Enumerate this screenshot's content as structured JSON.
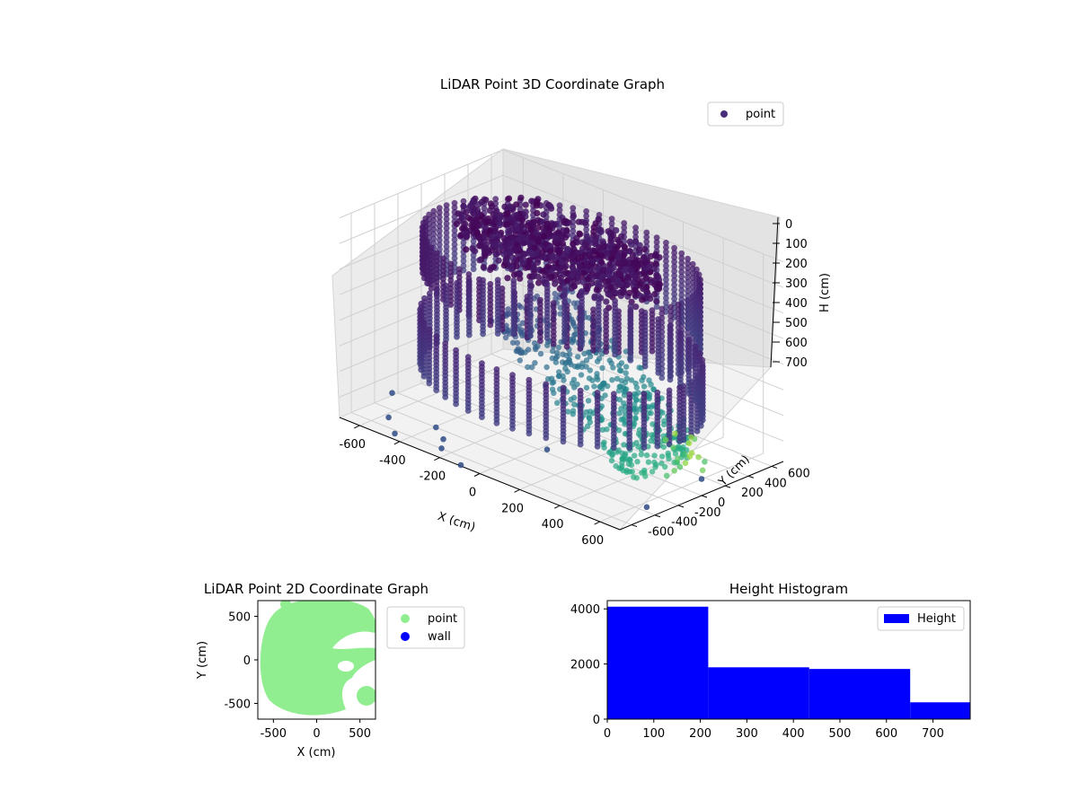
{
  "chart_data": [
    {
      "type": "scatter",
      "projection": "3d",
      "title": "LiDAR Point 3D Coordinate Graph",
      "xlabel": "X (cm)",
      "ylabel": "Y (cm)",
      "zlabel": "H (cm)",
      "xlim": [
        -700,
        700
      ],
      "ylim": [
        -700,
        700
      ],
      "zlim": [
        0,
        780
      ],
      "z_inverted": true,
      "xticks": [
        "-600",
        "-400",
        "-200",
        "0",
        "200",
        "400",
        "600"
      ],
      "yticks": [
        "-600",
        "-400",
        "-200",
        "0",
        "200",
        "400",
        "600"
      ],
      "zticks": [
        "0",
        "100",
        "200",
        "300",
        "400",
        "500",
        "600",
        "700"
      ],
      "grid": true,
      "legend": {
        "placement": "top-right",
        "entries": [
          {
            "label": "point",
            "color": "#472d7b"
          }
        ]
      },
      "colormap": "viridis",
      "series": [
        {
          "name": "point",
          "description_scene": "ring wall of points radius ~600, dense ceiling cluster, sloped inner surface"
        }
      ],
      "outliers": [
        {
          "x": -700,
          "y": -250,
          "h": 770
        },
        {
          "x": -560,
          "y": -520,
          "h": 770
        },
        {
          "x": -430,
          "y": -690,
          "h": 760
        },
        {
          "x": -300,
          "y": -560,
          "h": 720
        },
        {
          "x": -240,
          "y": -600,
          "h": 740
        },
        {
          "x": -220,
          "y": -650,
          "h": 760
        },
        {
          "x": -100,
          "y": -690,
          "h": 780
        },
        {
          "x": 150,
          "y": -380,
          "h": 700
        },
        {
          "x": 630,
          "y": 120,
          "h": 760
        },
        {
          "x": 630,
          "y": -350,
          "h": 780
        }
      ]
    },
    {
      "type": "scatter",
      "title": "LiDAR Point 2D Coordinate Graph",
      "xlabel": "X (cm)",
      "ylabel": "Y (cm)",
      "xlim": [
        -680,
        680
      ],
      "ylim": [
        -680,
        680
      ],
      "xticks": [
        -500,
        0,
        500
      ],
      "yticks": [
        -500,
        0,
        500
      ],
      "legend": {
        "placement": "outside-right",
        "entries": [
          {
            "label": "point",
            "color": "#90ee90"
          },
          {
            "label": "wall",
            "color": "#0000ff"
          }
        ]
      },
      "series": [
        {
          "name": "point",
          "color": "#90ee90",
          "shape": "filled disk radius ~620 centered ~(0,0) with notches on right side"
        }
      ]
    },
    {
      "type": "bar",
      "title": "Height Histogram",
      "xlabel": "",
      "ylabel": "",
      "xlim": [
        0,
        780
      ],
      "ylim": [
        0,
        4300
      ],
      "xticks": [
        0,
        100,
        200,
        300,
        400,
        500,
        600,
        700
      ],
      "yticks": [
        0,
        2000,
        4000
      ],
      "legend": {
        "placement": "top-right",
        "entries": [
          {
            "label": "Height",
            "color": "#0000ff"
          }
        ]
      },
      "bins": [
        {
          "start": 0,
          "end": 217,
          "value": 4080
        },
        {
          "start": 217,
          "end": 434,
          "value": 1880
        },
        {
          "start": 434,
          "end": 651,
          "value": 1820
        },
        {
          "start": 651,
          "end": 780,
          "value": 610
        }
      ],
      "color": "#0000ff"
    }
  ]
}
